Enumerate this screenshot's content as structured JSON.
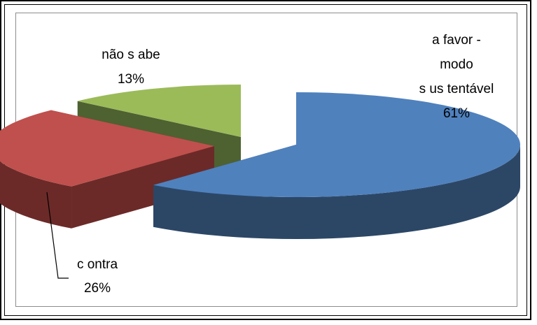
{
  "chart_data": {
    "type": "pie",
    "title": "",
    "three_d": true,
    "legend": "none",
    "slices": [
      {
        "label_lines": [
          "a  favor -",
          "modo",
          "s us tentável"
        ],
        "value_label": "61%",
        "value": 61,
        "color": "#4f81bd",
        "side_color": "#2c4766",
        "exploded": true
      },
      {
        "label_lines": [
          "c ontra"
        ],
        "value_label": "26%",
        "value": 26,
        "color": "#c0504d",
        "side_color": "#6b2a28",
        "exploded": false
      },
      {
        "label_lines": [
          "não s abe"
        ],
        "value_label": "13%",
        "value": 13,
        "color": "#9bbb59",
        "side_color": "#4e6131",
        "exploded": false
      }
    ]
  }
}
